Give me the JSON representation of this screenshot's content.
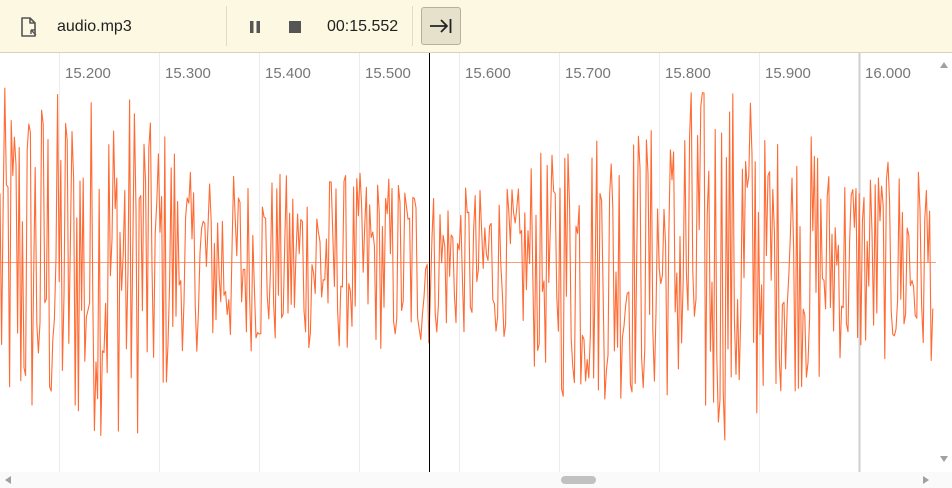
{
  "toolbar": {
    "file_icon": "file-audio-icon",
    "file_name": "audio.mp3",
    "pause_icon": "pause-icon",
    "stop_icon": "stop-icon",
    "current_time": "00:15.552",
    "follow_icon": "follow-playhead-icon"
  },
  "timeline": {
    "ticks": [
      "15.200",
      "15.300",
      "15.400",
      "15.500",
      "15.600",
      "15.700",
      "15.800",
      "15.900",
      "16.000"
    ],
    "playhead_time": 15.552
  },
  "colors": {
    "toolbar_bg": "#fdf8e1",
    "waveform": "#ff6b35",
    "playhead": "#000000",
    "gridline": "#e8e8e8"
  }
}
